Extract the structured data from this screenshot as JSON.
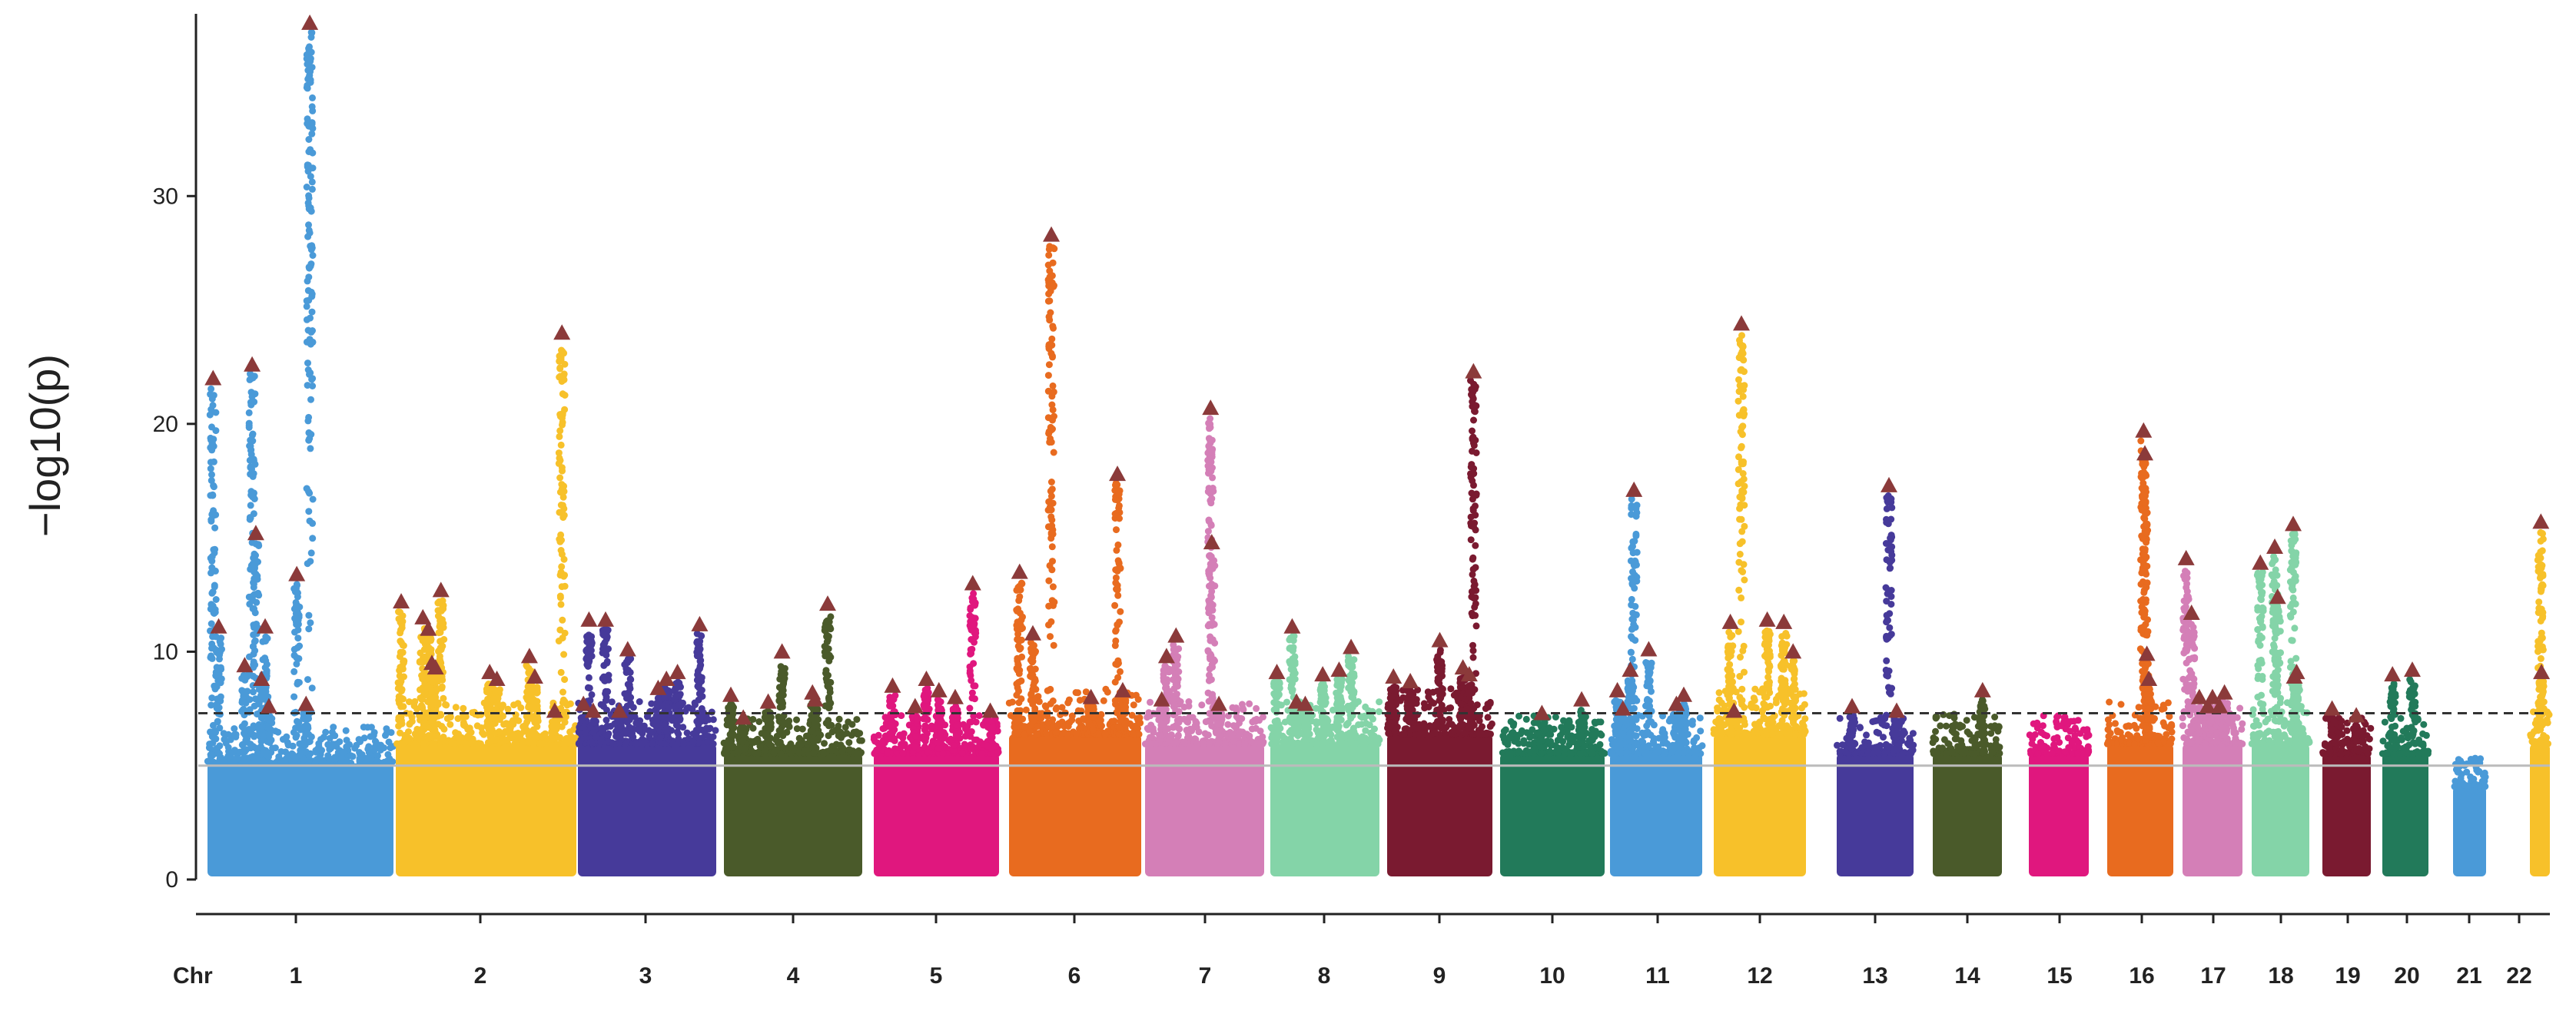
{
  "chart_data": {
    "type": "scatter",
    "subtype": "manhattan",
    "title": "",
    "ylabel": "−log10(p)",
    "xlabel_prefix": "Chr",
    "ylim": [
      0,
      38
    ],
    "yticks": [
      0,
      10,
      20,
      30
    ],
    "thresholds": [
      {
        "name": "genome-wide",
        "value": 7.3,
        "style": "dashed",
        "color": "#333333"
      },
      {
        "name": "suggestive",
        "value": 5.0,
        "style": "solid",
        "color": "#bbbbbb"
      }
    ],
    "peak_marker_color": "#8b3a3a",
    "chromosomes": [
      {
        "label": "1",
        "color": "#4a9ad8",
        "base": 6.0,
        "peaks": [
          [
            0.03,
            22.0
          ],
          [
            0.06,
            11.1
          ],
          [
            0.2,
            9.4
          ],
          [
            0.24,
            22.6
          ],
          [
            0.26,
            15.2
          ],
          [
            0.29,
            8.8
          ],
          [
            0.31,
            11.1
          ],
          [
            0.33,
            7.6
          ],
          [
            0.48,
            13.4
          ],
          [
            0.53,
            7.7
          ],
          [
            0.55,
            37.6
          ]
        ]
      },
      {
        "label": "2",
        "color": "#f7c12a",
        "base": 7.0,
        "peaks": [
          [
            0.03,
            12.2
          ],
          [
            0.15,
            11.5
          ],
          [
            0.18,
            11.0
          ],
          [
            0.2,
            9.5
          ],
          [
            0.22,
            9.3
          ],
          [
            0.25,
            12.7
          ],
          [
            0.52,
            9.1
          ],
          [
            0.56,
            8.8
          ],
          [
            0.74,
            9.8
          ],
          [
            0.77,
            8.9
          ],
          [
            0.88,
            7.4
          ],
          [
            0.92,
            24.0
          ]
        ]
      },
      {
        "label": "3",
        "color": "#463a9a",
        "base": 7.0,
        "peaks": [
          [
            0.04,
            7.7
          ],
          [
            0.08,
            11.4
          ],
          [
            0.11,
            7.4
          ],
          [
            0.2,
            11.4
          ],
          [
            0.3,
            7.4
          ],
          [
            0.36,
            10.1
          ],
          [
            0.58,
            8.4
          ],
          [
            0.64,
            8.8
          ],
          [
            0.72,
            9.1
          ],
          [
            0.88,
            11.2
          ]
        ]
      },
      {
        "label": "4",
        "color": "#4a5a2a",
        "base": 6.5,
        "peaks": [
          [
            0.05,
            8.1
          ],
          [
            0.14,
            7.1
          ],
          [
            0.32,
            7.8
          ],
          [
            0.42,
            10.0
          ],
          [
            0.64,
            8.2
          ],
          [
            0.66,
            7.9
          ],
          [
            0.75,
            12.1
          ]
        ]
      },
      {
        "label": "5",
        "color": "#e0177e",
        "base": 6.5,
        "peaks": [
          [
            0.15,
            8.5
          ],
          [
            0.33,
            7.6
          ],
          [
            0.42,
            8.8
          ],
          [
            0.52,
            8.3
          ],
          [
            0.65,
            8.0
          ],
          [
            0.79,
            13.0
          ],
          [
            0.93,
            7.4
          ]
        ]
      },
      {
        "label": "6",
        "color": "#e86b1f",
        "base": 7.5,
        "peaks": [
          [
            0.08,
            13.5
          ],
          [
            0.18,
            10.8
          ],
          [
            0.32,
            28.3
          ],
          [
            0.62,
            8.0
          ],
          [
            0.82,
            17.8
          ],
          [
            0.86,
            8.3
          ]
        ]
      },
      {
        "label": "7",
        "color": "#d47fb7",
        "base": 7.0,
        "peaks": [
          [
            0.14,
            7.9
          ],
          [
            0.18,
            9.8
          ],
          [
            0.26,
            10.7
          ],
          [
            0.55,
            20.7
          ],
          [
            0.56,
            14.8
          ],
          [
            0.62,
            7.7
          ]
        ]
      },
      {
        "label": "8",
        "color": "#84d4a8",
        "base": 7.0,
        "peaks": [
          [
            0.06,
            9.1
          ],
          [
            0.2,
            11.1
          ],
          [
            0.24,
            7.8
          ],
          [
            0.32,
            7.7
          ],
          [
            0.48,
            9.0
          ],
          [
            0.63,
            9.2
          ],
          [
            0.74,
            10.2
          ]
        ]
      },
      {
        "label": "9",
        "color": "#7a1a30",
        "base": 7.5,
        "peaks": [
          [
            0.06,
            8.9
          ],
          [
            0.22,
            8.7
          ],
          [
            0.5,
            10.5
          ],
          [
            0.72,
            9.3
          ],
          [
            0.78,
            9.0
          ],
          [
            0.82,
            22.3
          ]
        ]
      },
      {
        "label": "10",
        "color": "#227a5a",
        "base": 6.5,
        "peaks": [
          [
            0.4,
            7.3
          ],
          [
            0.78,
            7.9
          ]
        ]
      },
      {
        "label": "11",
        "color": "#4a9ad8",
        "base": 6.5,
        "peaks": [
          [
            0.08,
            8.3
          ],
          [
            0.14,
            7.5
          ],
          [
            0.22,
            9.2
          ],
          [
            0.26,
            17.1
          ],
          [
            0.42,
            10.1
          ],
          [
            0.72,
            7.7
          ],
          [
            0.8,
            8.1
          ]
        ]
      },
      {
        "label": "12",
        "color": "#f7c12a",
        "base": 7.5,
        "peaks": [
          [
            0.18,
            11.3
          ],
          [
            0.22,
            7.4
          ],
          [
            0.3,
            24.4
          ],
          [
            0.58,
            11.4
          ],
          [
            0.76,
            11.3
          ],
          [
            0.86,
            10.0
          ]
        ]
      },
      {
        "label": "13",
        "color": "#463a9a",
        "base": 6.5,
        "peaks": [
          [
            0.2,
            7.6
          ],
          [
            0.68,
            17.3
          ],
          [
            0.78,
            7.4
          ]
        ]
      },
      {
        "label": "14",
        "color": "#4a5a2a",
        "base": 6.5,
        "peaks": [
          [
            0.72,
            8.3
          ]
        ]
      },
      {
        "label": "15",
        "color": "#e0177e",
        "base": 6.5,
        "peaks": []
      },
      {
        "label": "16",
        "color": "#e86b1f",
        "base": 7.0,
        "peaks": [
          [
            0.55,
            19.7
          ],
          [
            0.57,
            18.7
          ],
          [
            0.6,
            9.9
          ],
          [
            0.63,
            8.8
          ]
        ]
      },
      {
        "label": "17",
        "color": "#d47fb7",
        "base": 7.0,
        "peaks": [
          [
            0.06,
            14.1
          ],
          [
            0.15,
            11.7
          ],
          [
            0.28,
            8.0
          ],
          [
            0.42,
            7.6
          ],
          [
            0.5,
            8.0
          ],
          [
            0.62,
            7.6
          ],
          [
            0.7,
            8.2
          ]
        ]
      },
      {
        "label": "18",
        "color": "#84d4a8",
        "base": 7.0,
        "peaks": [
          [
            0.15,
            13.9
          ],
          [
            0.4,
            14.6
          ],
          [
            0.45,
            12.4
          ],
          [
            0.72,
            15.6
          ],
          [
            0.74,
            8.9
          ],
          [
            0.78,
            9.1
          ]
        ]
      },
      {
        "label": "19",
        "color": "#7a1a30",
        "base": 6.5,
        "peaks": [
          [
            0.2,
            7.5
          ],
          [
            0.7,
            7.2
          ]
        ]
      },
      {
        "label": "20",
        "color": "#227a5a",
        "base": 6.5,
        "peaks": [
          [
            0.22,
            9.0
          ],
          [
            0.65,
            9.2
          ]
        ]
      },
      {
        "label": "21",
        "color": "#4a9ad8",
        "base": 4.8,
        "peaks": []
      },
      {
        "label": "22",
        "color": "#f7c12a",
        "base": 7.0,
        "peaks": [
          [
            0.55,
            15.7
          ],
          [
            0.58,
            9.1
          ]
        ]
      }
    ]
  }
}
